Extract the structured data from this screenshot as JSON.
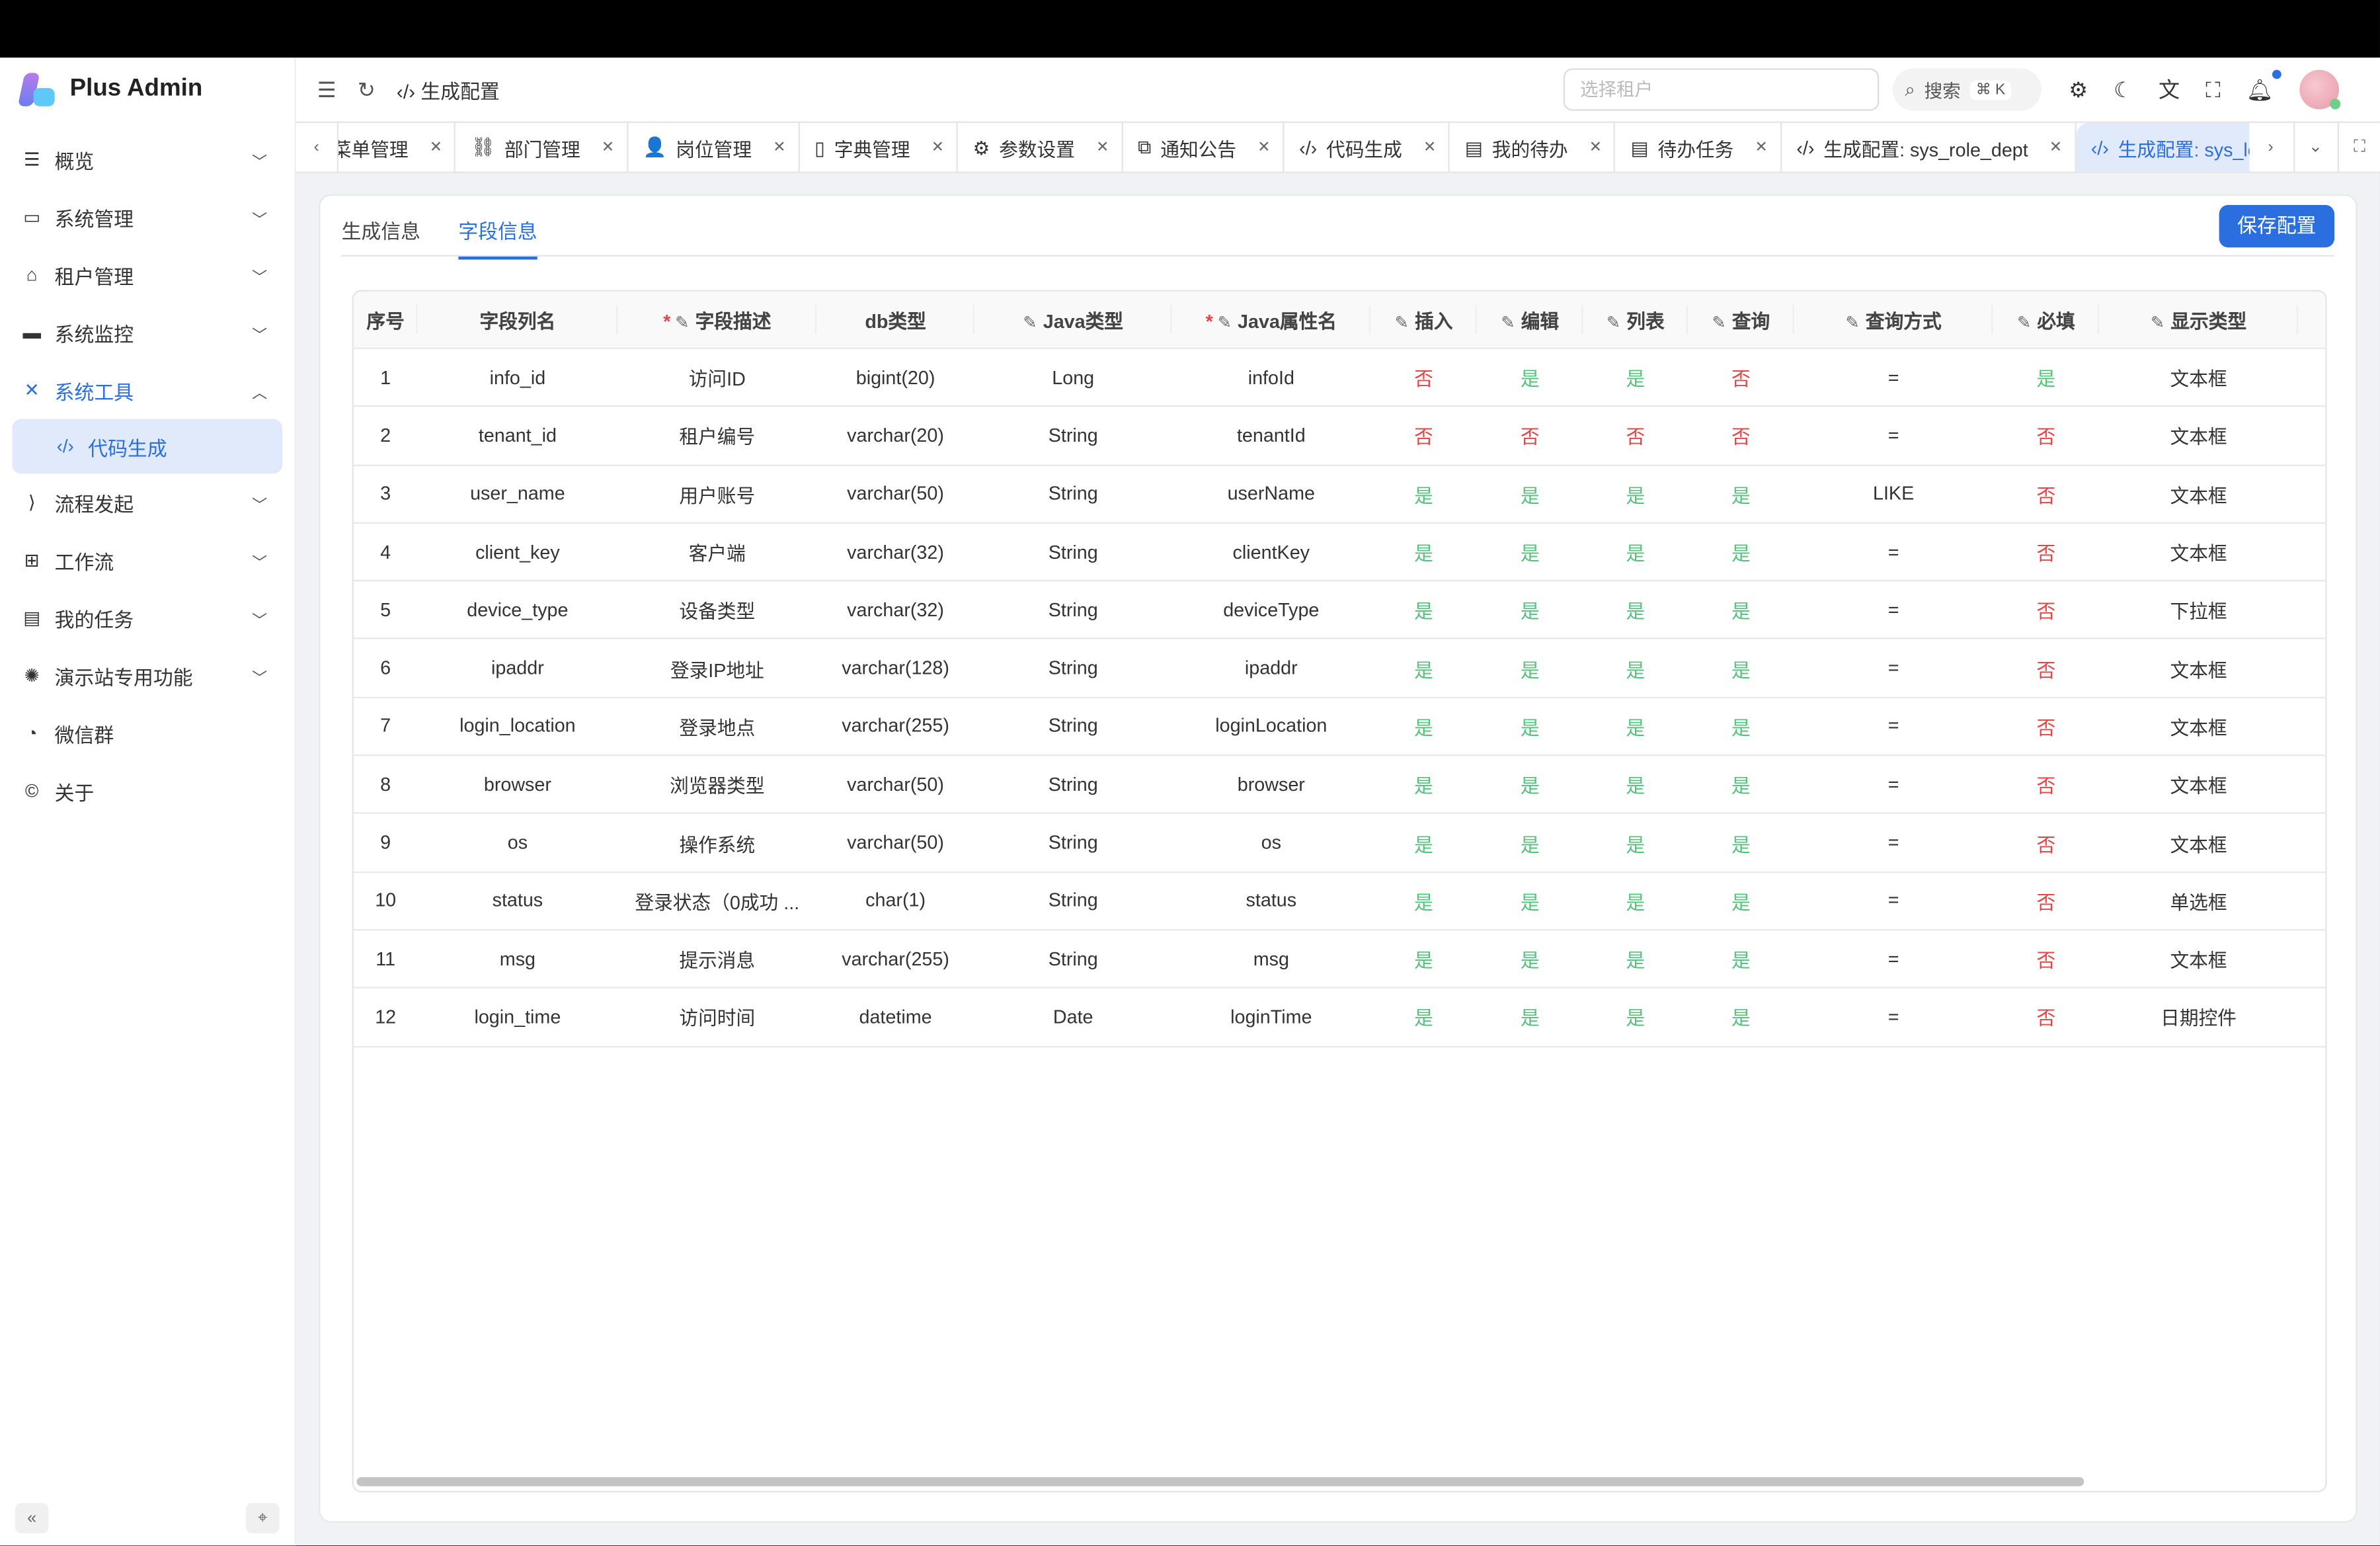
{
  "app": {
    "title": "Plus Admin"
  },
  "sidebar": {
    "items": [
      {
        "label": "概览",
        "icon": "list-icon",
        "chevron": "down"
      },
      {
        "label": "系统管理",
        "icon": "monitor-icon",
        "chevron": "down"
      },
      {
        "label": "租户管理",
        "icon": "home-icon",
        "chevron": "down"
      },
      {
        "label": "系统监控",
        "icon": "screen-icon",
        "chevron": "down"
      },
      {
        "label": "系统工具",
        "icon": "tools-icon",
        "chevron": "up",
        "open": true
      },
      {
        "label": "代码生成",
        "icon": "code-icon",
        "sub": true,
        "active": true
      },
      {
        "label": "流程发起",
        "icon": "vscode-icon",
        "chevron": "down"
      },
      {
        "label": "工作流",
        "icon": "sitemap-icon",
        "chevron": "down"
      },
      {
        "label": "我的任务",
        "icon": "task-icon",
        "chevron": "down"
      },
      {
        "label": "演示站专用功能",
        "icon": "globe-icon",
        "chevron": "down"
      },
      {
        "label": "微信群",
        "icon": "wechat-icon"
      },
      {
        "label": "关于",
        "icon": "copyright-icon"
      }
    ]
  },
  "header": {
    "breadcrumb": "生成配置",
    "tenant_placeholder": "选择租户",
    "search_label": "搜索",
    "search_shortcut": "⌘ K"
  },
  "tabs": [
    {
      "label": "菜单管理",
      "icon": ""
    },
    {
      "label": "部门管理",
      "icon": "⛓"
    },
    {
      "label": "岗位管理",
      "icon": "👤"
    },
    {
      "label": "字典管理",
      "icon": "▯"
    },
    {
      "label": "参数设置",
      "icon": "⚙"
    },
    {
      "label": "通知公告",
      "icon": "⧉"
    },
    {
      "label": "代码生成",
      "icon": "‹/›"
    },
    {
      "label": "我的待办",
      "icon": "▤"
    },
    {
      "label": "待办任务",
      "icon": "▤"
    },
    {
      "label": "生成配置: sys_role_dept",
      "icon": "‹/›"
    },
    {
      "label": "生成配置: sys_lo",
      "icon": "‹/›",
      "active": true
    }
  ],
  "content": {
    "tab_basic": "生成信息",
    "tab_fields": "字段信息",
    "save_label": "保存配置"
  },
  "table": {
    "columns": [
      "序号",
      "字段列名",
      "字段描述",
      "db类型",
      "Java类型",
      "Java属性名",
      "插入",
      "编辑",
      "列表",
      "查询",
      "查询方式",
      "必填",
      "显示类型"
    ],
    "rows": [
      [
        "1",
        "info_id",
        "访问ID",
        "bigint(20)",
        "Long",
        "infoId",
        "否",
        "是",
        "是",
        "否",
        "=",
        "是",
        "文本框"
      ],
      [
        "2",
        "tenant_id",
        "租户编号",
        "varchar(20)",
        "String",
        "tenantId",
        "否",
        "否",
        "否",
        "否",
        "=",
        "否",
        "文本框"
      ],
      [
        "3",
        "user_name",
        "用户账号",
        "varchar(50)",
        "String",
        "userName",
        "是",
        "是",
        "是",
        "是",
        "LIKE",
        "否",
        "文本框"
      ],
      [
        "4",
        "client_key",
        "客户端",
        "varchar(32)",
        "String",
        "clientKey",
        "是",
        "是",
        "是",
        "是",
        "=",
        "否",
        "文本框"
      ],
      [
        "5",
        "device_type",
        "设备类型",
        "varchar(32)",
        "String",
        "deviceType",
        "是",
        "是",
        "是",
        "是",
        "=",
        "否",
        "下拉框"
      ],
      [
        "6",
        "ipaddr",
        "登录IP地址",
        "varchar(128)",
        "String",
        "ipaddr",
        "是",
        "是",
        "是",
        "是",
        "=",
        "否",
        "文本框"
      ],
      [
        "7",
        "login_location",
        "登录地点",
        "varchar(255)",
        "String",
        "loginLocation",
        "是",
        "是",
        "是",
        "是",
        "=",
        "否",
        "文本框"
      ],
      [
        "8",
        "browser",
        "浏览器类型",
        "varchar(50)",
        "String",
        "browser",
        "是",
        "是",
        "是",
        "是",
        "=",
        "否",
        "文本框"
      ],
      [
        "9",
        "os",
        "操作系统",
        "varchar(50)",
        "String",
        "os",
        "是",
        "是",
        "是",
        "是",
        "=",
        "否",
        "文本框"
      ],
      [
        "10",
        "status",
        "登录状态（0成功 ...",
        "char(1)",
        "String",
        "status",
        "是",
        "是",
        "是",
        "是",
        "=",
        "否",
        "单选框"
      ],
      [
        "11",
        "msg",
        "提示消息",
        "varchar(255)",
        "String",
        "msg",
        "是",
        "是",
        "是",
        "是",
        "=",
        "否",
        "文本框"
      ],
      [
        "12",
        "login_time",
        "访问时间",
        "datetime",
        "Date",
        "loginTime",
        "是",
        "是",
        "是",
        "是",
        "=",
        "否",
        "日期控件"
      ]
    ]
  },
  "colors": {
    "accent": "#2b6ee0",
    "yes": "#52c27a",
    "no": "#e54545"
  }
}
